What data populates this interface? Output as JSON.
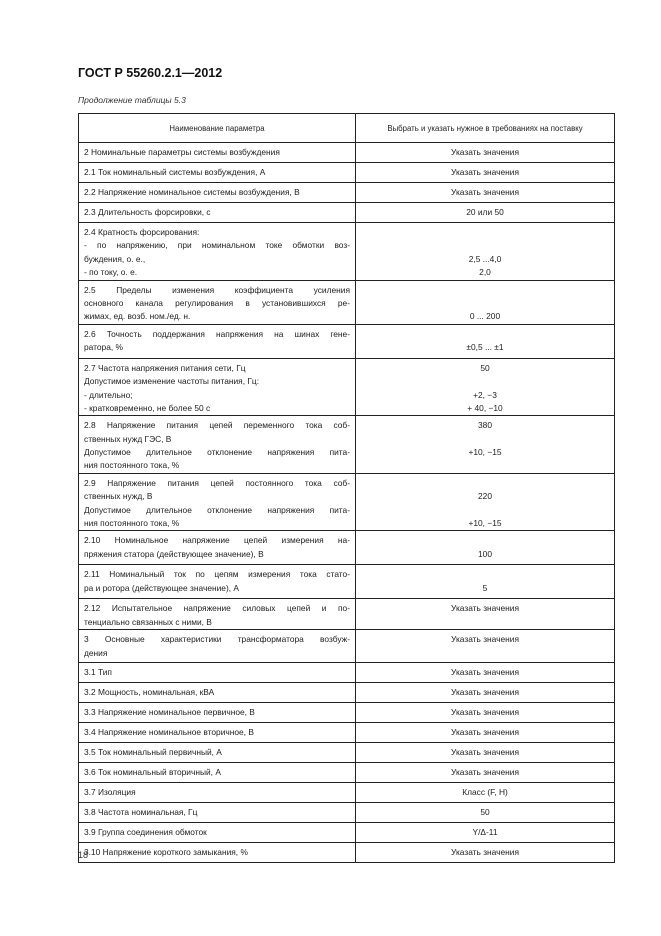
{
  "header": {
    "standard": "ГОСТ Р 55260.2.1—2012"
  },
  "caption": "Продолжение таблицы 5.3",
  "table": {
    "columns": [
      "Наименование параметра",
      "Выбрать и указать нужное в требованиях на поставку"
    ],
    "rows": [
      {
        "left": [
          "2  Номинальные параметры системы возбуждения"
        ],
        "right": [
          "Указать значения"
        ]
      },
      {
        "left": [
          "2.1  Ток номинальный системы возбуждения, А"
        ],
        "right": [
          "Указать значения"
        ]
      },
      {
        "left": [
          "2.2  Напряжение номинальное системы возбуждения, В"
        ],
        "right": [
          "Указать значения"
        ]
      },
      {
        "left": [
          "2.3  Длительность форсировки, с"
        ],
        "right": [
          "20 или 50"
        ]
      },
      {
        "left": [
          "2.4  Кратность форсирования:",
          "- по напряжению, при номинальном токе обмотки воз-",
          "буждения, о. е.,",
          "- по току, о. е."
        ],
        "right": [
          "",
          "",
          "2,5 ...4,0",
          "2,0"
        ]
      },
      {
        "left": [
          "2.5 Пределы изменения коэффициента усиления",
          "основного канала регулирования в установившихся ре-",
          "жимах, ед. возб. ном./ед. н."
        ],
        "right": [
          "",
          "",
          "0 ... 200"
        ]
      },
      {
        "left": [
          "2.6  Точность поддержания напряжения на шинах гене-",
          "ратора, %"
        ],
        "right": [
          "",
          "±0,5 ... ±1"
        ]
      },
      {
        "left": [
          "2.7  Частота напряжения питания сети, Гц",
          "Допустимое изменение частоты питания, Гц:",
          "- длительно;",
          "- кратковременно, не более 50 с"
        ],
        "right": [
          "50",
          "",
          "+2, −3",
          "+ 40, −10"
        ]
      },
      {
        "left": [
          "2.8  Напряжение питания цепей переменного тока соб-",
          "ственных нужд ГЭС, В",
          "Допустимое длительное отклонение напряжения пита-",
          "ния постоянного тока, %"
        ],
        "right": [
          "380",
          "",
          "+10, −15",
          ""
        ]
      },
      {
        "left": [
          "2.9  Напряжение питания цепей постоянного тока соб-",
          "ственных нужд, В",
          "Допустимое длительное отклонение напряжения пита-",
          "ния постоянного тока, %"
        ],
        "right": [
          "",
          "220",
          "",
          "+10, −15"
        ]
      },
      {
        "left": [
          "2.10 Номинальное напряжение цепей измерения на-",
          "пряжения статора (действующее значение), В"
        ],
        "right": [
          "",
          "100"
        ]
      },
      {
        "left": [
          "2.11  Номинальный ток по цепям измерения тока стато-",
          "ра и ротора (действующее значение), А"
        ],
        "right": [
          "",
          "5"
        ]
      },
      {
        "left": [
          "2.12  Испытательное напряжение силовых цепей и по-",
          "тенциально связанных с ними, В"
        ],
        "right": [
          "Указать значения",
          ""
        ]
      },
      {
        "left": [
          "3  Основные характеристики трансформатора возбуж-",
          "дения"
        ],
        "right": [
          "Указать значения",
          ""
        ]
      },
      {
        "left": [
          "3.1  Тип"
        ],
        "right": [
          "Указать значения"
        ]
      },
      {
        "left": [
          "3.2  Мощность, номинальная, кВА"
        ],
        "right": [
          "Указать значения"
        ]
      },
      {
        "left": [
          "3.3  Напряжение номинальное первичное, В"
        ],
        "right": [
          "Указать значения"
        ]
      },
      {
        "left": [
          "3.4  Напряжение номинальное вторичное, В"
        ],
        "right": [
          "Указать значения"
        ]
      },
      {
        "left": [
          "3.5  Ток номинальный первичный, А"
        ],
        "right": [
          "Указать значения"
        ]
      },
      {
        "left": [
          "3.6  Ток номинальный вторичный, А"
        ],
        "right": [
          "Указать значения"
        ]
      },
      {
        "left": [
          "3.7  Изоляция"
        ],
        "right": [
          "Класс (F, H)"
        ]
      },
      {
        "left": [
          "3.8  Частота номинальная, Гц"
        ],
        "right": [
          "50"
        ]
      },
      {
        "left": [
          "3.9  Группа соединения обмоток"
        ],
        "right": [
          "Y/Δ-11"
        ]
      },
      {
        "left": [
          "3.10  Напряжение короткого замыкания, %"
        ],
        "right": [
          "Указать значения"
        ]
      }
    ]
  },
  "page_number": "18"
}
